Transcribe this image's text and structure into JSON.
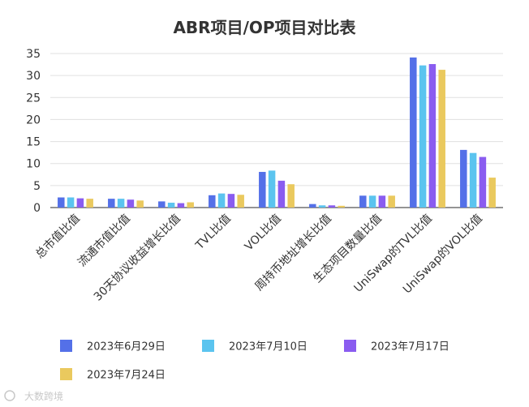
{
  "chart_data": {
    "type": "bar",
    "title": "ABR项目/OP项目对比表",
    "categories": [
      "总市值比值",
      "流通市值比值",
      "30天协议收益增长比值",
      "TVL比值",
      "VOL比值",
      "周持币地址增长比值",
      "生态项目数量比值",
      "UniSwap的TVL比值",
      "UniSwap的VOL比值"
    ],
    "series": [
      {
        "name": "2023年6月29日",
        "color": "#5470e8",
        "values": [
          2.3,
          2.0,
          1.4,
          2.8,
          8.1,
          0.8,
          2.7,
          34.1,
          13.1
        ]
      },
      {
        "name": "2023年7月10日",
        "color": "#5bc4ef",
        "values": [
          2.3,
          2.0,
          1.1,
          3.2,
          8.4,
          0.5,
          2.7,
          32.3,
          12.4
        ]
      },
      {
        "name": "2023年7月17日",
        "color": "#8a5cf0",
        "values": [
          2.1,
          1.8,
          1.0,
          3.1,
          6.1,
          0.5,
          2.7,
          32.6,
          11.5
        ]
      },
      {
        "name": "2023年7月24日",
        "color": "#eac95e",
        "values": [
          2.0,
          1.6,
          1.2,
          2.9,
          5.3,
          0.4,
          2.7,
          31.3,
          6.8
        ]
      }
    ],
    "yticks": [
      0,
      5,
      10,
      15,
      20,
      25,
      30,
      35
    ],
    "ylim": [
      0,
      35
    ],
    "grid": true,
    "legend": "bottom"
  },
  "watermark": "大数跨境"
}
